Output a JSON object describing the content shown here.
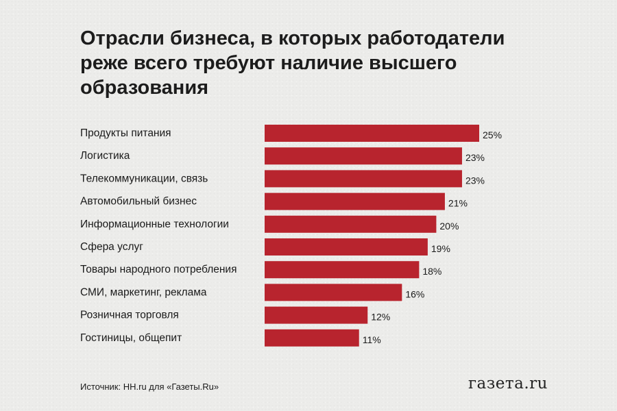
{
  "header": {
    "title": "Отрасли бизнеса, в которых работодатели реже всего требуют наличие высшего образования"
  },
  "footer": {
    "source": "Источник: HH.ru для «Газеты.Ru»",
    "logo": "газета.ru"
  },
  "colors": {
    "bar": "#b8242e",
    "text": "#1a1a1a",
    "background": "#ececea"
  },
  "chart_data": {
    "type": "bar",
    "orientation": "horizontal",
    "title": "Отрасли бизнеса, в которых работодатели реже всего требуют наличие высшего образования",
    "categories": [
      "Продукты питания",
      "Логистика",
      "Телекоммуникации, связь",
      "Автомобильный бизнес",
      "Информационные технологии",
      "Сфера услуг",
      "Товары народного потребления",
      "СМИ, маркетинг, реклама",
      "Розничная торговля",
      "Гостиницы, общепит"
    ],
    "values": [
      25,
      23,
      23,
      21,
      20,
      19,
      18,
      16,
      12,
      11
    ],
    "value_labels": [
      "25%",
      "23%",
      "23%",
      "21%",
      "20%",
      "19%",
      "18%",
      "16%",
      "12%",
      "11%"
    ],
    "unit": "%",
    "xlim": [
      0,
      25
    ],
    "grid": false,
    "legend": "none"
  }
}
